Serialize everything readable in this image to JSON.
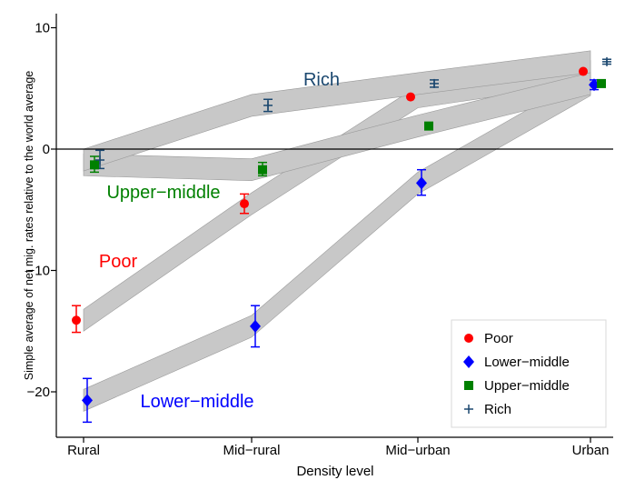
{
  "chart_data": {
    "type": "line",
    "xlabel": "Density level",
    "ylabel": "Simple average of net mig. rates relative to the world average",
    "categories": [
      "Rural",
      "Mid−rural",
      "Mid−urban",
      "Urban"
    ],
    "yticks": [
      {
        "value": 10,
        "label": "10"
      },
      {
        "value": 0,
        "label": "0"
      },
      {
        "value": -10,
        "label": "−10"
      },
      {
        "value": -20,
        "label": "−20"
      }
    ],
    "ylim": [
      -22.8,
      10.6
    ],
    "reference_line": 0,
    "grid": false,
    "legend_position": "bottom-right",
    "series": [
      {
        "name": "Poor",
        "color": "#ff0000",
        "marker": "circle",
        "values": [
          -14.1,
          -4.5,
          4.3,
          6.4
        ],
        "ci": [
          [
            -15.1,
            -12.9
          ],
          [
            -5.3,
            -3.7
          ],
          null,
          null
        ],
        "annotation": "Poor"
      },
      {
        "name": "Lower−middle",
        "color": "#0000ff",
        "marker": "diamond",
        "values": [
          -20.7,
          -14.6,
          -2.8,
          5.3
        ],
        "ci": [
          [
            -22.5,
            -18.9
          ],
          [
            -16.3,
            -12.9
          ],
          [
            -3.8,
            -1.7
          ],
          [
            4.9,
            5.7
          ]
        ],
        "annotation": "Lower−middle"
      },
      {
        "name": "Upper−middle",
        "color": "#008000",
        "marker": "square",
        "values": [
          -1.3,
          -1.7,
          1.9,
          5.4
        ],
        "ci": [
          [
            -1.9,
            -0.6
          ],
          [
            -2.2,
            -1.1
          ],
          null,
          null
        ],
        "annotation": "Upper−middle"
      },
      {
        "name": "Rich",
        "color": "#1a476f",
        "marker": "plus",
        "values": [
          -0.9,
          3.6,
          5.4,
          7.2
        ],
        "ci": [
          [
            -1.6,
            -0.1
          ],
          [
            3.1,
            4.1
          ],
          [
            5.1,
            5.7
          ],
          [
            7.0,
            7.4
          ]
        ],
        "annotation": "Rich"
      }
    ]
  }
}
